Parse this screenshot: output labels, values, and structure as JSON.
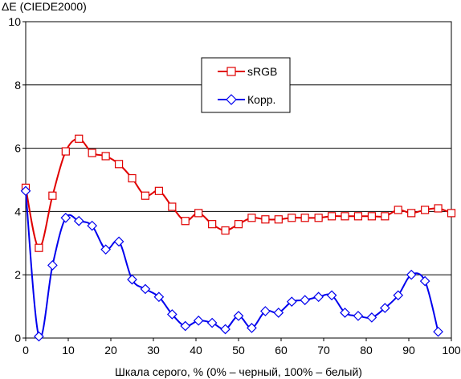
{
  "chart_data": {
    "type": "line",
    "title": "",
    "ylabel": "ΔE (CIEDE2000)",
    "xlabel": "Шкала серого, % (0% – черный, 100% – белый)",
    "xlim": [
      0,
      100
    ],
    "ylim": [
      0,
      10
    ],
    "x_ticks": [
      0,
      10,
      20,
      30,
      40,
      50,
      60,
      70,
      80,
      90,
      100
    ],
    "y_ticks": [
      0,
      2,
      4,
      6,
      8,
      10
    ],
    "grid": "horizontal",
    "legend_position": "top-center",
    "x": [
      0,
      3.1,
      6.3,
      9.4,
      12.5,
      15.6,
      18.8,
      21.9,
      25,
      28.1,
      31.3,
      34.4,
      37.5,
      40.6,
      43.8,
      46.9,
      50,
      53.1,
      56.3,
      59.4,
      62.5,
      65.6,
      68.8,
      71.9,
      75,
      78.1,
      81.3,
      84.4,
      87.5,
      90.6,
      93.8,
      96.9,
      100
    ],
    "series": [
      {
        "name": "sRGB",
        "color": "#e00000",
        "marker": "square",
        "values": [
          4.75,
          2.85,
          4.5,
          5.9,
          6.3,
          5.85,
          5.75,
          5.5,
          5.05,
          4.5,
          4.65,
          4.15,
          3.7,
          3.95,
          3.6,
          3.4,
          3.6,
          3.8,
          3.75,
          3.75,
          3.8,
          3.8,
          3.8,
          3.85,
          3.85,
          3.85,
          3.85,
          3.85,
          4.05,
          3.95,
          4.05,
          4.1,
          3.95
        ]
      },
      {
        "name": "Корр.",
        "color": "#0000ee",
        "marker": "diamond",
        "values": [
          4.65,
          0.05,
          2.3,
          3.8,
          3.7,
          3.55,
          2.8,
          3.05,
          1.85,
          1.55,
          1.3,
          0.75,
          0.38,
          0.55,
          0.48,
          0.28,
          0.7,
          0.32,
          0.85,
          0.8,
          1.15,
          1.2,
          1.3,
          1.35,
          0.8,
          0.7,
          0.65,
          0.95,
          1.35,
          2.0,
          1.8,
          0.2,
          null
        ]
      }
    ]
  }
}
